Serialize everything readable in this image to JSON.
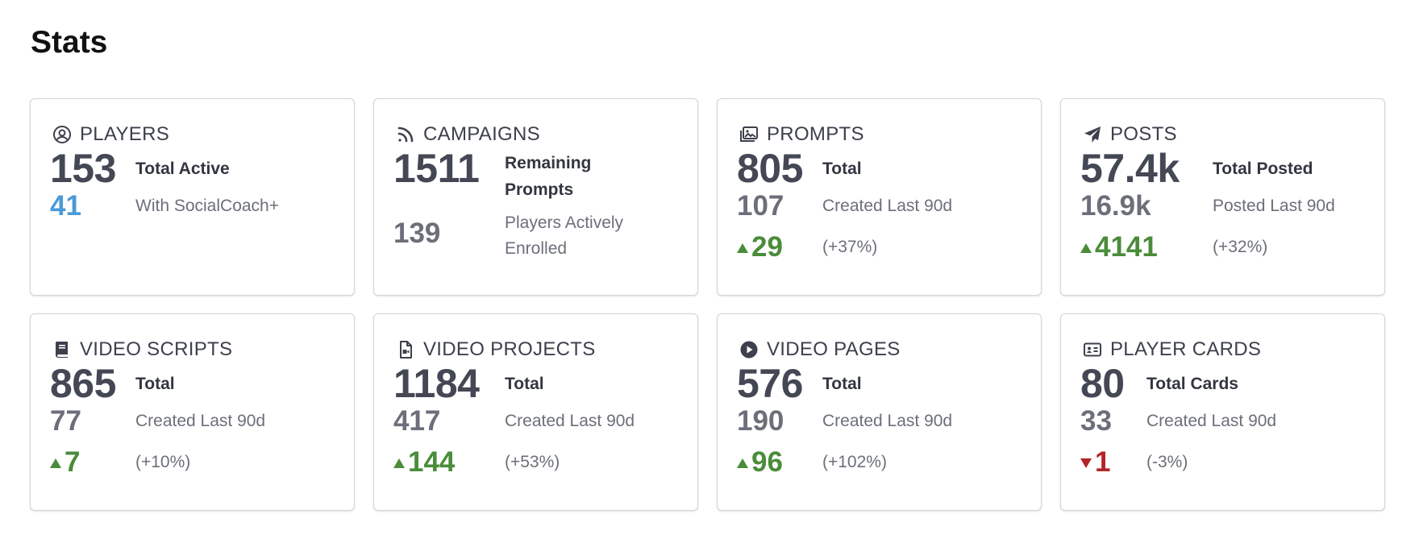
{
  "page": {
    "title": "Stats"
  },
  "colors": {
    "text": "#444754",
    "muted": "#6c6f7a",
    "blue": "#4a9ad8",
    "green": "#4a8c3a",
    "red": "#b3242a",
    "border": "#d4d4d8"
  },
  "cards": [
    {
      "title": "PLAYERS",
      "icon": "user-circle-icon",
      "big": "153",
      "big_label": "Total Active",
      "mid": "41",
      "mid_label": "With SocialCoach+"
    },
    {
      "title": "CAMPAIGNS",
      "icon": "rss-icon",
      "big": "1511",
      "big_label_line1": "Remaining",
      "big_label_line2": "Prompts",
      "mid": "139",
      "mid_label_line1": "Players Actively",
      "mid_label_line2": "Enrolled"
    },
    {
      "title": "PROMPTS",
      "icon": "images-icon",
      "big": "805",
      "big_label": "Total",
      "mid": "107",
      "mid_label": "Created Last 90d",
      "delta": "29",
      "delta_dir": "up",
      "delta_label": "(+37%)"
    },
    {
      "title": "POSTS",
      "icon": "paper-plane-icon",
      "big": "57.4k",
      "big_label": "Total Posted",
      "mid": "16.9k",
      "mid_label": "Posted Last 90d",
      "delta": "4141",
      "delta_dir": "up",
      "delta_label": "(+32%)"
    },
    {
      "title": "VIDEO SCRIPTS",
      "icon": "book-icon",
      "big": "865",
      "big_label": "Total",
      "mid": "77",
      "mid_label": "Created Last 90d",
      "delta": "7",
      "delta_dir": "up",
      "delta_label": "(+10%)"
    },
    {
      "title": "VIDEO PROJECTS",
      "icon": "file-video-icon",
      "big": "1184",
      "big_label": "Total",
      "mid": "417",
      "mid_label": "Created Last 90d",
      "delta": "144",
      "delta_dir": "up",
      "delta_label": "(+53%)"
    },
    {
      "title": "VIDEO PAGES",
      "icon": "play-circle-icon",
      "big": "576",
      "big_label": "Total",
      "mid": "190",
      "mid_label": "Created Last 90d",
      "delta": "96",
      "delta_dir": "up",
      "delta_label": "(+102%)"
    },
    {
      "title": "PLAYER CARDS",
      "icon": "id-card-icon",
      "big": "80",
      "big_label": "Total Cards",
      "mid": "33",
      "mid_label": "Created Last 90d",
      "delta": "1",
      "delta_dir": "down",
      "delta_label": "(-3%)"
    }
  ]
}
